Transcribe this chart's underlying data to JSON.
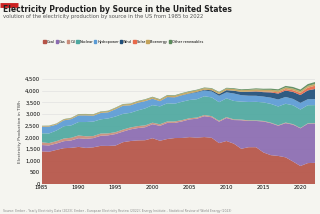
{
  "title": "Electricity Production by Source in the United States",
  "subtitle": "volution of the electricity production by source in the US from 1985 to 2022",
  "ylabel": "Electricity Production in TWh",
  "source": "Source: Ember - Yearly Electricity Data (2023); Ember - European Electricity Review (2022); Energy Institute - Statistical Review of World Energy (2023)",
  "years": [
    1985,
    1986,
    1987,
    1988,
    1989,
    1990,
    1991,
    1992,
    1993,
    1994,
    1995,
    1996,
    1997,
    1998,
    1999,
    2000,
    2001,
    2002,
    2003,
    2004,
    2005,
    2006,
    2007,
    2008,
    2009,
    2010,
    2011,
    2012,
    2013,
    2014,
    2015,
    2016,
    2017,
    2018,
    2019,
    2020,
    2021,
    2022
  ],
  "series": {
    "Coal": [
      1402,
      1385,
      1464,
      1540,
      1553,
      1594,
      1551,
      1576,
      1639,
      1635,
      1652,
      1795,
      1845,
      1873,
      1881,
      1966,
      1858,
      1933,
      1974,
      1978,
      2013,
      1990,
      2016,
      1985,
      1756,
      1847,
      1733,
      1514,
      1581,
      1581,
      1356,
      1239,
      1206,
      1146,
      966,
      774,
      899,
      910
    ],
    "Gas": [
      272,
      272,
      273,
      298,
      318,
      373,
      388,
      395,
      433,
      454,
      494,
      455,
      500,
      528,
      556,
      601,
      639,
      692,
      649,
      710,
      760,
      813,
      896,
      882,
      920,
      987,
      1013,
      1225,
      1124,
      1126,
      1330,
      1373,
      1296,
      1468,
      1582,
      1617,
      1688,
      1688
    ],
    "Oil": [
      120,
      100,
      103,
      114,
      116,
      117,
      110,
      90,
      95,
      85,
      80,
      85,
      82,
      85,
      80,
      65,
      68,
      60,
      62,
      57,
      52,
      50,
      49,
      46,
      37,
      37,
      30,
      28,
      28,
      24,
      22,
      22,
      21,
      25,
      22,
      17,
      17,
      17
    ],
    "Nuclear": [
      384,
      414,
      455,
      527,
      530,
      577,
      612,
      619,
      610,
      640,
      673,
      675,
      628,
      673,
      728,
      754,
      769,
      780,
      763,
      788,
      782,
      787,
      806,
      806,
      799,
      807,
      790,
      769,
      789,
      797,
      797,
      805,
      805,
      807,
      809,
      790,
      778,
      772
    ],
    "Hydropower": [
      281,
      291,
      250,
      251,
      265,
      280,
      281,
      249,
      269,
      260,
      309,
      347,
      319,
      323,
      309,
      271,
      216,
      259,
      263,
      268,
      268,
      289,
      248,
      254,
      274,
      257,
      319,
      277,
      268,
      259,
      249,
      268,
      300,
      292,
      274,
      285,
      257,
      258
    ],
    "Wind": [
      2,
      3,
      4,
      5,
      5,
      5,
      5,
      5,
      5,
      5,
      5,
      5,
      5,
      5,
      5,
      6,
      7,
      11,
      11,
      14,
      17,
      26,
      32,
      52,
      73,
      94,
      120,
      140,
      168,
      182,
      190,
      226,
      254,
      275,
      300,
      338,
      380,
      435
    ],
    "Solar": [
      0,
      0,
      0,
      0,
      0,
      0,
      0,
      0,
      0,
      0,
      0,
      0,
      0,
      0,
      0,
      0,
      0,
      0,
      0,
      0,
      0,
      0,
      0,
      0,
      0,
      1,
      2,
      4,
      9,
      18,
      25,
      36,
      53,
      63,
      72,
      90,
      116,
      143
    ],
    "Bioenergy": [
      30,
      32,
      35,
      38,
      40,
      42,
      44,
      46,
      48,
      50,
      52,
      54,
      56,
      58,
      60,
      62,
      63,
      64,
      66,
      68,
      69,
      70,
      70,
      68,
      70,
      71,
      73,
      73,
      75,
      77,
      75,
      75,
      74,
      73,
      72,
      72,
      76,
      76
    ],
    "Other renewables": [
      10,
      11,
      13,
      15,
      16,
      17,
      17,
      17,
      18,
      18,
      18,
      18,
      18,
      20,
      21,
      22,
      22,
      23,
      24,
      24,
      25,
      25,
      25,
      25,
      25,
      30,
      32,
      35,
      38,
      42,
      45,
      50,
      57,
      63,
      68,
      72,
      78,
      82
    ]
  },
  "colors": {
    "Coal": "#b55347",
    "Gas": "#8b6bb1",
    "Oil": "#c98c7a",
    "Nuclear": "#4ea8a0",
    "Hydropower": "#5b9bd5",
    "Wind": "#1f4e79",
    "Solar": "#e8694a",
    "Bioenergy": "#c4a35a",
    "Other renewables": "#5a8a5a"
  },
  "ylim": [
    0,
    4500
  ],
  "yticks": [
    0,
    500,
    1000,
    1500,
    2000,
    2500,
    3000,
    3500,
    4000,
    4500
  ],
  "bg_color": "#f5f5f0",
  "title_color": "#222222",
  "subtitle_color": "#555555",
  "source_color": "#888888",
  "red_line_color": "#cc2222",
  "grid_color": "#dddddd"
}
